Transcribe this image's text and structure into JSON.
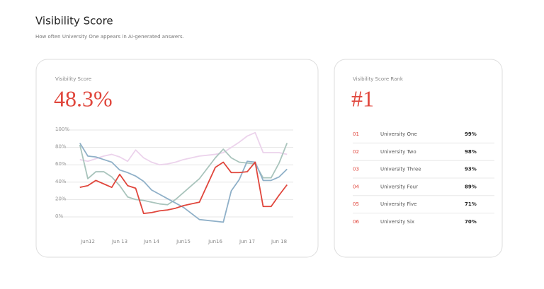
{
  "header": {
    "title": "Visibility Score",
    "subtitle": "How often University One appears in AI-generated answers."
  },
  "score_card": {
    "label": "Visibility Score",
    "value": "48.3%"
  },
  "chart_data": {
    "type": "line",
    "categories": [
      null,
      "Jun12",
      null,
      null,
      null,
      "Jun 13",
      null,
      null,
      null,
      "Jun 14",
      null,
      null,
      null,
      "Jun15",
      null,
      null,
      null,
      "Jun16",
      null,
      null,
      null,
      "Jun 17",
      null,
      null,
      null,
      "Jun 18",
      null
    ],
    "series": [
      {
        "color": "#ecd3ec",
        "values": [
          66,
          64,
          67,
          70,
          72,
          69,
          64,
          77,
          68,
          63,
          60,
          61,
          63,
          66,
          68,
          70,
          71,
          72,
          74,
          80,
          86,
          93,
          97,
          74,
          74,
          74,
          72
        ]
      },
      {
        "color": "#a9c4bc",
        "values": [
          83,
          44,
          52,
          52,
          46,
          36,
          23,
          20,
          19,
          17,
          15,
          14,
          20,
          28,
          36,
          44,
          56,
          68,
          78,
          68,
          63,
          62,
          61,
          45,
          45,
          62,
          85
        ]
      },
      {
        "color": "#8fb0c8",
        "values": [
          85,
          70,
          69,
          66,
          63,
          54,
          51,
          47,
          41,
          31,
          26,
          21,
          16,
          11,
          4,
          -3,
          -4,
          -5,
          -6,
          30,
          43,
          64,
          63,
          42,
          42,
          46,
          55
        ]
      },
      {
        "color": "#e0463c",
        "values": [
          34,
          36,
          42,
          38,
          34,
          49,
          36,
          33,
          4,
          5,
          7,
          8,
          10,
          13,
          15,
          17,
          37,
          57,
          63,
          51,
          51,
          52,
          63,
          12,
          12,
          25,
          37
        ]
      }
    ],
    "ylim": [
      0,
      100
    ],
    "yticks": [
      {
        "value": 0,
        "label": "0%"
      },
      {
        "value": 20,
        "label": "20%"
      },
      {
        "value": 40,
        "label": "40%"
      },
      {
        "value": 60,
        "label": "60%"
      },
      {
        "value": 80,
        "label": "80%"
      },
      {
        "value": 100,
        "label": "100%"
      }
    ],
    "grid": true
  },
  "rank_card": {
    "label": "Visibility Score Rank",
    "value": "#1",
    "rows": [
      [
        "01",
        "University One",
        "99%"
      ],
      [
        "02",
        "University Two",
        "98%"
      ],
      [
        "03",
        "University Three",
        "93%"
      ],
      [
        "04",
        "University Four",
        "89%"
      ],
      [
        "05",
        "University Five",
        "71%"
      ],
      [
        "06",
        "University Six",
        "70%"
      ]
    ]
  }
}
